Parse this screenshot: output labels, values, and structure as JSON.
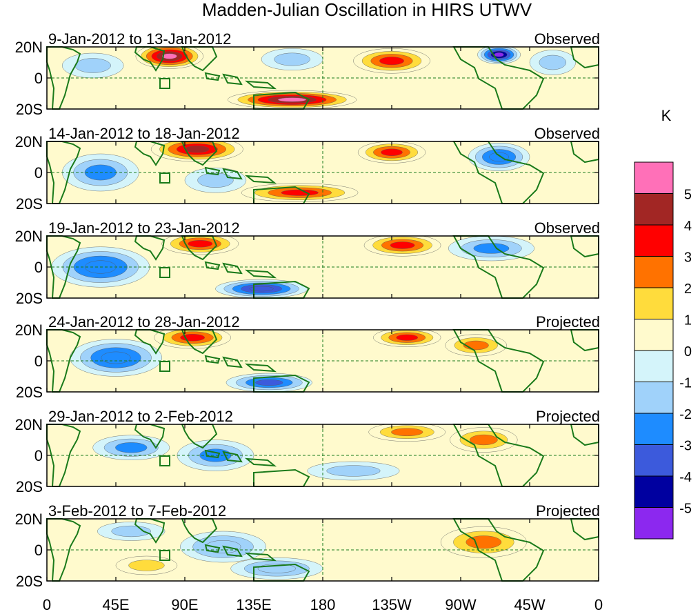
{
  "chart_data": {
    "type": "heatmap",
    "title": "Madden-Julian Oscillation in HIRS UTWV",
    "units": "K",
    "y_tick_labels": [
      "20N",
      "0",
      "20S"
    ],
    "x_tick_labels": [
      "0",
      "45E",
      "90E",
      "135E",
      "180",
      "135W",
      "90W",
      "45W",
      "0"
    ],
    "colorbar": {
      "levels": [
        "5",
        "4",
        "3",
        "2",
        "1",
        "0",
        "-1",
        "-2",
        "-3",
        "-4",
        "-5"
      ],
      "colors": [
        "#ff70b8",
        "#a22624",
        "#ff0000",
        "#ff7200",
        "#ffdc3c",
        "#fffacd",
        "#d4f4fa",
        "#a0d2fa",
        "#1e8cff",
        "#3c5adc",
        "#0000a0",
        "#8c28ef"
      ]
    },
    "panels": [
      {
        "period": "9-Jan-2012 to 13-Jan-2012",
        "status": "Observed",
        "anomalies": [
          {
            "lon": 80,
            "lat": 14,
            "value": 5.0,
            "rx": 22,
            "ry": 8
          },
          {
            "lon": 160,
            "lat": -14,
            "value": 5.0,
            "rx": 42,
            "ry": 6
          },
          {
            "lon": 225,
            "lat": 11,
            "value": 3.5,
            "rx": 25,
            "ry": 8
          },
          {
            "lon": 295,
            "lat": 15,
            "value": -5.0,
            "rx": 14,
            "ry": 6
          },
          {
            "lon": 30,
            "lat": 8,
            "value": -1.5,
            "rx": 20,
            "ry": 8
          },
          {
            "lon": 160,
            "lat": 12,
            "value": -1.5,
            "rx": 20,
            "ry": 7
          },
          {
            "lon": 330,
            "lat": 10,
            "value": -1.5,
            "rx": 15,
            "ry": 8
          }
        ]
      },
      {
        "period": "14-Jan-2012 to 18-Jan-2012",
        "status": "Observed",
        "anomalies": [
          {
            "lon": 98,
            "lat": 15,
            "value": 4.0,
            "rx": 30,
            "ry": 8
          },
          {
            "lon": 165,
            "lat": -13,
            "value": 3.0,
            "rx": 38,
            "ry": 6
          },
          {
            "lon": 225,
            "lat": 13,
            "value": 3.0,
            "rx": 22,
            "ry": 7
          },
          {
            "lon": 295,
            "lat": 10,
            "value": -3.0,
            "rx": 20,
            "ry": 9
          },
          {
            "lon": 35,
            "lat": 0,
            "value": -2.5,
            "rx": 25,
            "ry": 12
          },
          {
            "lon": 110,
            "lat": -5,
            "value": -1.5,
            "rx": 20,
            "ry": 8
          }
        ]
      },
      {
        "period": "19-Jan-2012 to 23-Jan-2012",
        "status": "Observed",
        "anomalies": [
          {
            "lon": 100,
            "lat": 15,
            "value": 3.5,
            "rx": 25,
            "ry": 7
          },
          {
            "lon": 232,
            "lat": 14,
            "value": 3.0,
            "rx": 25,
            "ry": 7
          },
          {
            "lon": 35,
            "lat": 0,
            "value": -3.0,
            "rx": 32,
            "ry": 13
          },
          {
            "lon": 140,
            "lat": -14,
            "value": -4.0,
            "rx": 30,
            "ry": 6
          },
          {
            "lon": 290,
            "lat": 12,
            "value": -2.5,
            "rx": 28,
            "ry": 8
          }
        ]
      },
      {
        "period": "24-Jan-2012 to 28-Jan-2012",
        "status": "Projected",
        "anomalies": [
          {
            "lon": 95,
            "lat": 15,
            "value": 3.0,
            "rx": 25,
            "ry": 7
          },
          {
            "lon": 235,
            "lat": 15,
            "value": 3.0,
            "rx": 22,
            "ry": 6
          },
          {
            "lon": 280,
            "lat": 10,
            "value": 2.5,
            "rx": 20,
            "ry": 7
          },
          {
            "lon": 45,
            "lat": 2,
            "value": -3.0,
            "rx": 30,
            "ry": 12
          },
          {
            "lon": 145,
            "lat": -14,
            "value": -3.5,
            "rx": 28,
            "ry": 6
          }
        ]
      },
      {
        "period": "29-Jan-2012 to 2-Feb-2012",
        "status": "Projected",
        "anomalies": [
          {
            "lon": 235,
            "lat": 15,
            "value": 2.5,
            "rx": 25,
            "ry": 6
          },
          {
            "lon": 285,
            "lat": 10,
            "value": 2.5,
            "rx": 22,
            "ry": 8
          },
          {
            "lon": 55,
            "lat": 5,
            "value": -2.5,
            "rx": 25,
            "ry": 8
          },
          {
            "lon": 110,
            "lat": 0,
            "value": -2.5,
            "rx": 25,
            "ry": 10
          },
          {
            "lon": 200,
            "lat": -10,
            "value": -1.2,
            "rx": 30,
            "ry": 6
          }
        ]
      },
      {
        "period": "3-Feb-2012 to 7-Feb-2012",
        "status": "Projected",
        "anomalies": [
          {
            "lon": 285,
            "lat": 5,
            "value": 2.0,
            "rx": 28,
            "ry": 10
          },
          {
            "lon": 65,
            "lat": -10,
            "value": 1.5,
            "rx": 20,
            "ry": 6
          },
          {
            "lon": 115,
            "lat": 2,
            "value": -2.0,
            "rx": 28,
            "ry": 10
          },
          {
            "lon": 150,
            "lat": -12,
            "value": -2.0,
            "rx": 30,
            "ry": 7
          },
          {
            "lon": 55,
            "lat": 12,
            "value": -1.5,
            "rx": 22,
            "ry": 6
          }
        ]
      }
    ]
  }
}
